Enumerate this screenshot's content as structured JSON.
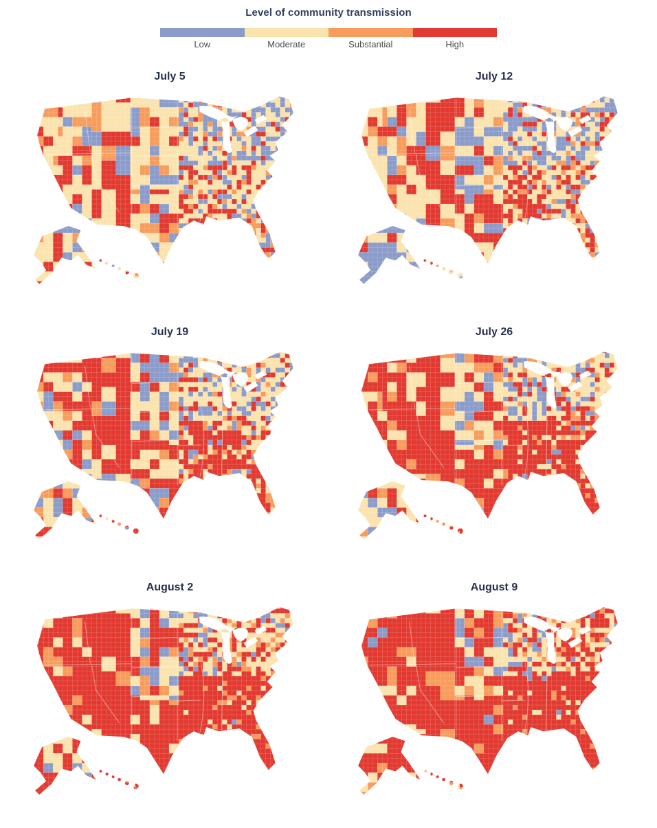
{
  "chart_data": {
    "type": "choropleth",
    "title": "Level of community transmission",
    "geography": "United States counties, contiguous 48 states with Alaska and Hawaii insets",
    "layout": "six small-multiple maps, 2 columns x 3 rows, shared legend at top",
    "legend_position": "top-center",
    "levels": [
      {
        "label": "Low",
        "color": "#8b9cca"
      },
      {
        "label": "Moderate",
        "color": "#fbe3ae"
      },
      {
        "label": "Substantial",
        "color": "#f79c5c"
      },
      {
        "label": "High",
        "color": "#e23a30"
      }
    ],
    "dates": [
      "July 5",
      "July 12",
      "July 19",
      "July 26",
      "August 2",
      "August 9"
    ],
    "region_mix_note": "Approximate percent of county area shaded [Low, Moderate, Substantial, High] in each region of the figure",
    "maps": [
      {
        "label": "July 5",
        "region_mix": {
          "pacific": [
            12,
            55,
            18,
            15
          ],
          "west_coast": [
            10,
            52,
            14,
            24
          ],
          "west": [
            8,
            35,
            12,
            45
          ],
          "plains_north": [
            42,
            38,
            8,
            12
          ],
          "texas": [
            22,
            40,
            10,
            28
          ],
          "upper_midwest": [
            45,
            40,
            5,
            10
          ],
          "midsouth": [
            15,
            33,
            10,
            42
          ],
          "northeast": [
            42,
            44,
            6,
            8
          ],
          "southeast": [
            18,
            48,
            12,
            22
          ],
          "florida": [
            10,
            40,
            20,
            30
          ],
          "alaska": [
            25,
            55,
            8,
            12
          ],
          "hawaii": [
            10,
            55,
            25,
            10
          ]
        }
      },
      {
        "label": "July 12",
        "region_mix": {
          "pacific": [
            10,
            48,
            20,
            22
          ],
          "west_coast": [
            8,
            45,
            16,
            31
          ],
          "west": [
            6,
            28,
            14,
            52
          ],
          "plains_north": [
            38,
            38,
            8,
            16
          ],
          "texas": [
            18,
            36,
            10,
            36
          ],
          "upper_midwest": [
            42,
            40,
            5,
            13
          ],
          "midsouth": [
            10,
            26,
            12,
            52
          ],
          "northeast": [
            38,
            44,
            8,
            10
          ],
          "southeast": [
            14,
            42,
            14,
            30
          ],
          "florida": [
            6,
            30,
            20,
            44
          ],
          "alaska": [
            45,
            30,
            8,
            17
          ],
          "hawaii": [
            8,
            40,
            22,
            30
          ]
        }
      },
      {
        "label": "July 19",
        "region_mix": {
          "pacific": [
            6,
            40,
            22,
            32
          ],
          "west_coast": [
            6,
            36,
            18,
            40
          ],
          "west": [
            4,
            20,
            12,
            64
          ],
          "plains_north": [
            30,
            40,
            10,
            20
          ],
          "texas": [
            12,
            22,
            10,
            56
          ],
          "upper_midwest": [
            35,
            45,
            6,
            14
          ],
          "midsouth": [
            6,
            16,
            10,
            68
          ],
          "northeast": [
            25,
            55,
            8,
            12
          ],
          "southeast": [
            8,
            30,
            14,
            48
          ],
          "florida": [
            3,
            15,
            14,
            68
          ],
          "alaska": [
            25,
            45,
            10,
            20
          ],
          "hawaii": [
            5,
            30,
            20,
            45
          ]
        }
      },
      {
        "label": "July 26",
        "region_mix": {
          "pacific": [
            4,
            28,
            18,
            50
          ],
          "west_coast": [
            4,
            24,
            16,
            56
          ],
          "west": [
            3,
            14,
            10,
            73
          ],
          "plains_north": [
            24,
            40,
            10,
            26
          ],
          "texas": [
            8,
            12,
            8,
            72
          ],
          "upper_midwest": [
            28,
            46,
            8,
            18
          ],
          "midsouth": [
            3,
            7,
            6,
            84
          ],
          "northeast": [
            15,
            55,
            12,
            18
          ],
          "southeast": [
            4,
            16,
            12,
            68
          ],
          "florida": [
            2,
            6,
            10,
            82
          ],
          "alaska": [
            10,
            55,
            10,
            25
          ],
          "hawaii": [
            4,
            20,
            16,
            60
          ]
        }
      },
      {
        "label": "August 2",
        "region_mix": {
          "pacific": [
            3,
            18,
            14,
            65
          ],
          "west_coast": [
            3,
            16,
            12,
            69
          ],
          "west": [
            2,
            10,
            10,
            78
          ],
          "plains_north": [
            18,
            34,
            12,
            36
          ],
          "texas": [
            5,
            8,
            8,
            79
          ],
          "upper_midwest": [
            20,
            42,
            10,
            28
          ],
          "midsouth": [
            2,
            4,
            5,
            89
          ],
          "northeast": [
            8,
            42,
            16,
            34
          ],
          "southeast": [
            2,
            9,
            10,
            79
          ],
          "florida": [
            1,
            4,
            7,
            88
          ],
          "alaska": [
            6,
            34,
            12,
            48
          ],
          "hawaii": [
            3,
            12,
            15,
            70
          ]
        }
      },
      {
        "label": "August 9",
        "region_mix": {
          "pacific": [
            2,
            12,
            10,
            76
          ],
          "west_coast": [
            2,
            10,
            10,
            78
          ],
          "west": [
            2,
            6,
            8,
            84
          ],
          "plains_north": [
            14,
            28,
            12,
            46
          ],
          "texas": [
            4,
            6,
            8,
            82
          ],
          "upper_midwest": [
            14,
            36,
            12,
            38
          ],
          "midsouth": [
            1,
            3,
            4,
            92
          ],
          "northeast": [
            4,
            28,
            18,
            50
          ],
          "southeast": [
            1,
            5,
            8,
            86
          ],
          "florida": [
            1,
            3,
            6,
            90
          ],
          "alaska": [
            4,
            18,
            12,
            66
          ],
          "hawaii": [
            2,
            8,
            12,
            78
          ]
        }
      }
    ]
  }
}
